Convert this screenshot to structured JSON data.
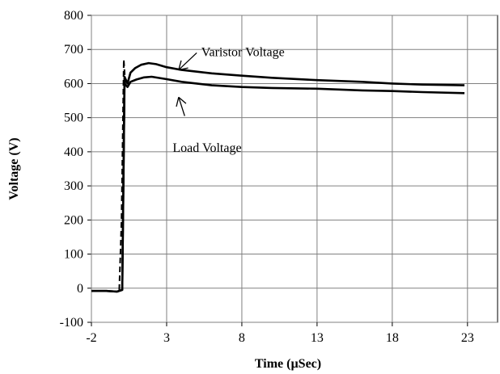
{
  "chart_data": {
    "type": "line",
    "title": "",
    "xlabel": "Time (µSec)",
    "ylabel": "Voltage (V)",
    "xlim": [
      -2,
      25
    ],
    "ylim": [
      -100,
      800
    ],
    "x_ticks": [
      -2,
      3,
      8,
      13,
      18,
      23
    ],
    "y_ticks": [
      -100,
      0,
      100,
      200,
      300,
      400,
      500,
      600,
      700,
      800
    ],
    "grid": true,
    "legend": "none",
    "series": [
      {
        "key": "varistor",
        "color": "#000000",
        "style": "solid",
        "points": [
          [
            -2,
            -8
          ],
          [
            -1,
            -8
          ],
          [
            -0.3,
            -10
          ],
          [
            0.05,
            -5
          ],
          [
            0.2,
            620
          ],
          [
            0.4,
            600
          ],
          [
            0.6,
            632
          ],
          [
            0.9,
            645
          ],
          [
            1.3,
            655
          ],
          [
            1.8,
            660
          ],
          [
            2.3,
            657
          ],
          [
            3,
            648
          ],
          [
            4,
            640
          ],
          [
            5,
            635
          ],
          [
            6,
            630
          ],
          [
            8,
            623
          ],
          [
            10,
            617
          ],
          [
            13,
            610
          ],
          [
            16,
            605
          ],
          [
            18,
            600
          ],
          [
            20,
            597
          ],
          [
            22.8,
            595
          ]
        ]
      },
      {
        "key": "load",
        "color": "#000000",
        "style": "solid",
        "points": [
          [
            -2,
            -8
          ],
          [
            -1,
            -8
          ],
          [
            -0.3,
            -10
          ],
          [
            0.05,
            -5
          ],
          [
            0.2,
            600
          ],
          [
            0.4,
            590
          ],
          [
            0.6,
            605
          ],
          [
            1,
            612
          ],
          [
            1.5,
            618
          ],
          [
            2,
            620
          ],
          [
            3,
            613
          ],
          [
            4,
            605
          ],
          [
            5,
            600
          ],
          [
            6,
            595
          ],
          [
            8,
            590
          ],
          [
            10,
            587
          ],
          [
            13,
            585
          ],
          [
            16,
            580
          ],
          [
            18,
            578
          ],
          [
            20,
            575
          ],
          [
            22.8,
            572
          ]
        ]
      },
      {
        "key": "source",
        "color": "#000000",
        "style": "dashed",
        "points": [
          [
            -0.15,
            -5
          ],
          [
            0,
            200
          ],
          [
            0.1,
            500
          ],
          [
            0.15,
            670
          ],
          [
            0.25,
            600
          ]
        ]
      }
    ],
    "annotations": [
      {
        "key": "varistor_label",
        "text": "Varistor Voltage",
        "x": 5.3,
        "y": 680,
        "arrow_from": [
          5,
          690
        ],
        "arrow_to": [
          3.8,
          640
        ]
      },
      {
        "key": "load_label",
        "text": "Load Voltage",
        "x": 3.4,
        "y": 400,
        "arrow_from": [
          4.2,
          505
        ],
        "arrow_to": [
          3.8,
          560
        ]
      }
    ]
  }
}
